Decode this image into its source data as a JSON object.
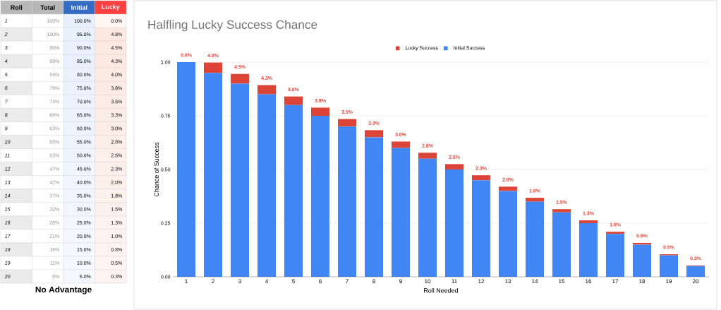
{
  "chart_data": [
    {
      "type": "heatmap",
      "ylabel": "Roll",
      "categories": [
        "Total",
        "Initial",
        "Lucky"
      ],
      "y_categories": [
        "1",
        "2",
        "3",
        "4",
        "5",
        "6",
        "7",
        "8",
        "9",
        "10",
        "11",
        "12",
        "13",
        "14",
        "15",
        "16",
        "17",
        "18",
        "19",
        "20"
      ],
      "cells": [
        [
          100,
          100.0,
          0.0
        ],
        [
          100,
          95.0,
          4.8
        ],
        [
          95,
          90.0,
          4.5
        ],
        [
          89,
          85.0,
          4.3
        ],
        [
          84,
          80.0,
          4.0
        ],
        [
          79,
          75.0,
          3.8
        ],
        [
          74,
          70.0,
          3.5
        ],
        [
          68,
          65.0,
          3.3
        ],
        [
          63,
          60.0,
          3.0
        ],
        [
          58,
          55.0,
          2.8
        ],
        [
          53,
          50.0,
          2.5
        ],
        [
          47,
          45.0,
          2.3
        ],
        [
          42,
          40.0,
          2.0
        ],
        [
          37,
          35.0,
          1.8
        ],
        [
          32,
          30.0,
          1.5
        ],
        [
          26,
          25.0,
          1.3
        ],
        [
          21,
          20.0,
          1.0
        ],
        [
          16,
          15.0,
          0.8
        ],
        [
          11,
          10.0,
          0.5
        ],
        [
          5,
          5.0,
          0.3
        ]
      ],
      "cell_labels": [
        [
          "100%",
          "100.0%",
          "0.0%"
        ],
        [
          "100%",
          "95.0%",
          "4.8%"
        ],
        [
          "95%",
          "90.0%",
          "4.5%"
        ],
        [
          "89%",
          "85.0%",
          "4.3%"
        ],
        [
          "84%",
          "80.0%",
          "4.0%"
        ],
        [
          "79%",
          "75.0%",
          "3.8%"
        ],
        [
          "74%",
          "70.0%",
          "3.5%"
        ],
        [
          "68%",
          "65.0%",
          "3.3%"
        ],
        [
          "63%",
          "60.0%",
          "3.0%"
        ],
        [
          "58%",
          "55.0%",
          "2.8%"
        ],
        [
          "53%",
          "50.0%",
          "2.5%"
        ],
        [
          "47%",
          "45.0%",
          "2.3%"
        ],
        [
          "42%",
          "40.0%",
          "2.0%"
        ],
        [
          "37%",
          "35.0%",
          "1.8%"
        ],
        [
          "32%",
          "30.0%",
          "1.5%"
        ],
        [
          "26%",
          "25.0%",
          "1.3%"
        ],
        [
          "21%",
          "20.0%",
          "1.0%"
        ],
        [
          "16%",
          "15.0%",
          "0.8%"
        ],
        [
          "11%",
          "10.0%",
          "0.5%"
        ],
        [
          "5%",
          "5.0%",
          "0.3%"
        ]
      ],
      "colors": [
        "#ffffff",
        "#e8f0fe",
        "#fce8e0"
      ],
      "annotations": [
        "No Advantage"
      ]
    },
    {
      "type": "bar",
      "stacked": true,
      "title": "Halfling Lucky Success Chance",
      "xlabel": "Roll Needed",
      "ylabel": "Chance of Success",
      "categories": [
        "1",
        "2",
        "3",
        "4",
        "5",
        "6",
        "7",
        "8",
        "9",
        "10",
        "11",
        "12",
        "13",
        "14",
        "15",
        "16",
        "17",
        "18",
        "19",
        "20"
      ],
      "series": [
        {
          "name": "Initial Success",
          "color": "#4285f4",
          "values": [
            1.0,
            0.95,
            0.9,
            0.85,
            0.8,
            0.75,
            0.7,
            0.65,
            0.6,
            0.55,
            0.5,
            0.45,
            0.4,
            0.35,
            0.3,
            0.25,
            0.2,
            0.15,
            0.1,
            0.05
          ]
        },
        {
          "name": "Lucky Success",
          "color": "#db4437",
          "values": [
            0.0,
            0.048,
            0.045,
            0.043,
            0.04,
            0.038,
            0.035,
            0.033,
            0.03,
            0.028,
            0.025,
            0.023,
            0.02,
            0.018,
            0.015,
            0.013,
            0.01,
            0.008,
            0.005,
            0.003
          ],
          "value_labels": [
            "0.0%",
            "4.8%",
            "4.5%",
            "4.3%",
            "4.0%",
            "3.8%",
            "3.5%",
            "3.3%",
            "3.0%",
            "2.8%",
            "2.5%",
            "2.3%",
            "2.0%",
            "1.8%",
            "1.5%",
            "1.3%",
            "1.0%",
            "0.8%",
            "0.5%",
            "0.3%"
          ]
        }
      ],
      "ylim": [
        0,
        1
      ],
      "yticks": [
        {
          "value": 0,
          "label": "0.00"
        },
        {
          "value": 0.25,
          "label": "0.25"
        },
        {
          "value": 0.5,
          "label": "0.50"
        },
        {
          "value": 0.75,
          "label": "0.75"
        },
        {
          "value": 1,
          "label": "1.00"
        }
      ],
      "grid": "y",
      "legend": "top"
    }
  ]
}
